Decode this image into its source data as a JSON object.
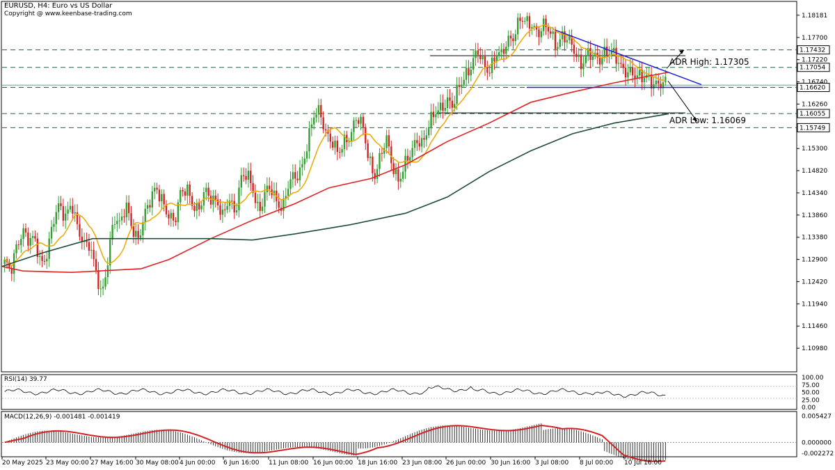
{
  "header": {
    "symbol_line": "EURUSD, H4:  Euro vs US Dollar",
    "copyright": "Copyright @ www.keenbase-trading.com"
  },
  "colors": {
    "bull": "#2e9e2e",
    "bear": "#d42020",
    "ma_fast": "#f0a500",
    "ma_mid": "#e22020",
    "ma_slow": "#1f4a35",
    "trend": "#1f1fd6",
    "grid": "#c8c8c8",
    "level": "#1a6b3a"
  },
  "chart_data": [
    {
      "type": "candlestick",
      "name": "price",
      "ylim": [
        1.105,
        1.1845
      ],
      "y_ticks": [
        "1.18181",
        "1.17700",
        "1.17220",
        "1.16740",
        "1.16260",
        "1.15780",
        "1.15300",
        "1.14820",
        "1.14340",
        "1.13860",
        "1.13380",
        "1.12900",
        "1.12420",
        "1.11940",
        "1.11460",
        "1.10980"
      ],
      "level_labels": [
        {
          "label": "1.17432",
          "value": 1.17432
        },
        {
          "label": "1.17054",
          "value": 1.17054
        },
        {
          "label": "1.16620",
          "value": 1.1662
        },
        {
          "label": "1.16055",
          "value": 1.16055
        },
        {
          "label": "1.15749",
          "value": 1.15749
        }
      ],
      "annotations": [
        {
          "text": "ADR High: 1.17305",
          "value": 1.17305
        },
        {
          "text": "ADR Low: 1.16069",
          "value": 1.16069
        }
      ],
      "ohlc_path": [
        1.1285,
        1.1255,
        1.132,
        1.136,
        1.133,
        1.1325,
        1.128,
        1.131,
        1.137,
        1.14,
        1.1385,
        1.142,
        1.1355,
        1.1315,
        1.133,
        1.1275,
        1.12,
        1.128,
        1.139,
        1.137,
        1.14,
        1.1355,
        1.134,
        1.1385,
        1.141,
        1.1445,
        1.1425,
        1.1385,
        1.136,
        1.1435,
        1.1455,
        1.1405,
        1.1385,
        1.1445,
        1.143,
        1.141,
        1.1375,
        1.143,
        1.1395,
        1.146,
        1.147,
        1.1445,
        1.1395,
        1.143,
        1.144,
        1.1415,
        1.141,
        1.1455,
        1.1465,
        1.1495,
        1.1545,
        1.1595,
        1.161,
        1.157,
        1.1545,
        1.151,
        1.1545,
        1.1565,
        1.1595,
        1.1575,
        1.1515,
        1.1475,
        1.151,
        1.1545,
        1.1495,
        1.1465,
        1.149,
        1.1515,
        1.1555,
        1.1545,
        1.1575,
        1.1605,
        1.1625,
        1.1635,
        1.1615,
        1.1665,
        1.1695,
        1.171,
        1.1735,
        1.171,
        1.1705,
        1.1735,
        1.1725,
        1.1765,
        1.178,
        1.181,
        1.1795,
        1.18,
        1.1785,
        1.1795,
        1.1775,
        1.1755,
        1.178,
        1.176,
        1.1735,
        1.1715,
        1.174,
        1.1725,
        1.1715,
        1.1745,
        1.1745,
        1.1715,
        1.1695,
        1.1705,
        1.169,
        1.1675,
        1.1685,
        1.1678,
        1.1668,
        1.1664
      ],
      "moving_averages": [
        {
          "label": "MA fast (yellow)",
          "color": "#f0a500"
        },
        {
          "label": "MA mid (red)",
          "color": "#e22020"
        },
        {
          "label": "MA slow (dark green)",
          "color": "#1f4a35"
        }
      ]
    },
    {
      "type": "line",
      "name": "RSI(14) 39.77",
      "ylim": [
        0,
        100
      ],
      "y_ticks": [
        "100.00",
        "75.00",
        "50.00",
        "25.00",
        "0.00"
      ],
      "levels": [
        70,
        30
      ]
    },
    {
      "type": "bar",
      "name": "MACD(12,26,9) -0.001481 -0.001419",
      "ylim": [
        -0.0024,
        0.0058
      ],
      "y_ticks": [
        "0.005427",
        "0.000000",
        "-0.002272"
      ]
    }
  ],
  "x_axis": {
    "labels": [
      "20 May 2025",
      "23 May 00:00",
      "27 May 16:00",
      "30 May 08:00",
      "4 Jun 00:00",
      "6 Jun 16:00",
      "11 Jun 08:00",
      "16 Jun 00:00",
      "18 Jun 16:00",
      "23 Jun 08:00",
      "26 Jun 00:00",
      "30 Jun 16:00",
      "3 Jul 08:00",
      "8 Jul 00:00",
      "10 Jul 16:00"
    ]
  }
}
